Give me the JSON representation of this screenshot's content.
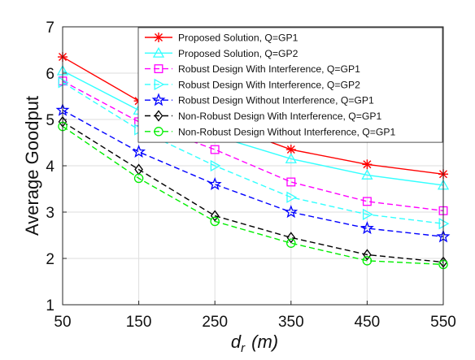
{
  "chart_data": {
    "type": "line",
    "x": [
      50,
      150,
      250,
      350,
      450,
      550
    ],
    "xlim": [
      50,
      550
    ],
    "ylim": [
      1,
      7
    ],
    "xticks": [
      "50",
      "150",
      "250",
      "350",
      "450",
      "550"
    ],
    "yticks": [
      "1",
      "2",
      "3",
      "4",
      "5",
      "6",
      "7"
    ],
    "xlabel": "d",
    "xlabel_sub": "r",
    "xlabel_unit": "(m)",
    "ylabel": "Average Goodput",
    "grid": true,
    "legend_position": "top-right",
    "series": [
      {
        "name": "Proposed Solution, Q=GP1",
        "values": [
          6.35,
          5.4,
          4.95,
          4.35,
          4.03,
          3.82
        ],
        "color": "#ff0000",
        "dash": "solid",
        "marker": "asterisk"
      },
      {
        "name": "Proposed Solution, Q=GP2",
        "values": [
          6.05,
          5.2,
          4.65,
          4.15,
          3.8,
          3.58
        ],
        "color": "#33ffff",
        "dash": "solid",
        "marker": "triangle-up"
      },
      {
        "name": "Robust Design With Interference, Q=GP1",
        "values": [
          5.83,
          4.95,
          4.35,
          3.65,
          3.23,
          3.03
        ],
        "color": "#ff00ff",
        "dash": "dashed",
        "marker": "square"
      },
      {
        "name": "Robust Design With Interference, Q=GP2",
        "values": [
          5.8,
          4.78,
          4.0,
          3.32,
          2.95,
          2.75
        ],
        "color": "#33ffff",
        "dash": "dashed",
        "marker": "triangle-right"
      },
      {
        "name": "Robust Design Without Interference, Q=GP1",
        "values": [
          5.2,
          4.3,
          3.6,
          3.0,
          2.65,
          2.47
        ],
        "color": "#0000ff",
        "dash": "dashed",
        "marker": "pentagram"
      },
      {
        "name": "Non-Robust Design With Interference, Q=GP1",
        "values": [
          4.95,
          3.92,
          2.92,
          2.45,
          2.08,
          1.92
        ],
        "color": "#000000",
        "dash": "dashed",
        "marker": "diamond"
      },
      {
        "name": "Non-Robust Design Without Interference, Q=GP1",
        "values": [
          4.85,
          3.73,
          2.8,
          2.33,
          1.95,
          1.87
        ],
        "color": "#00ee00",
        "dash": "dashed",
        "marker": "circle"
      }
    ]
  }
}
